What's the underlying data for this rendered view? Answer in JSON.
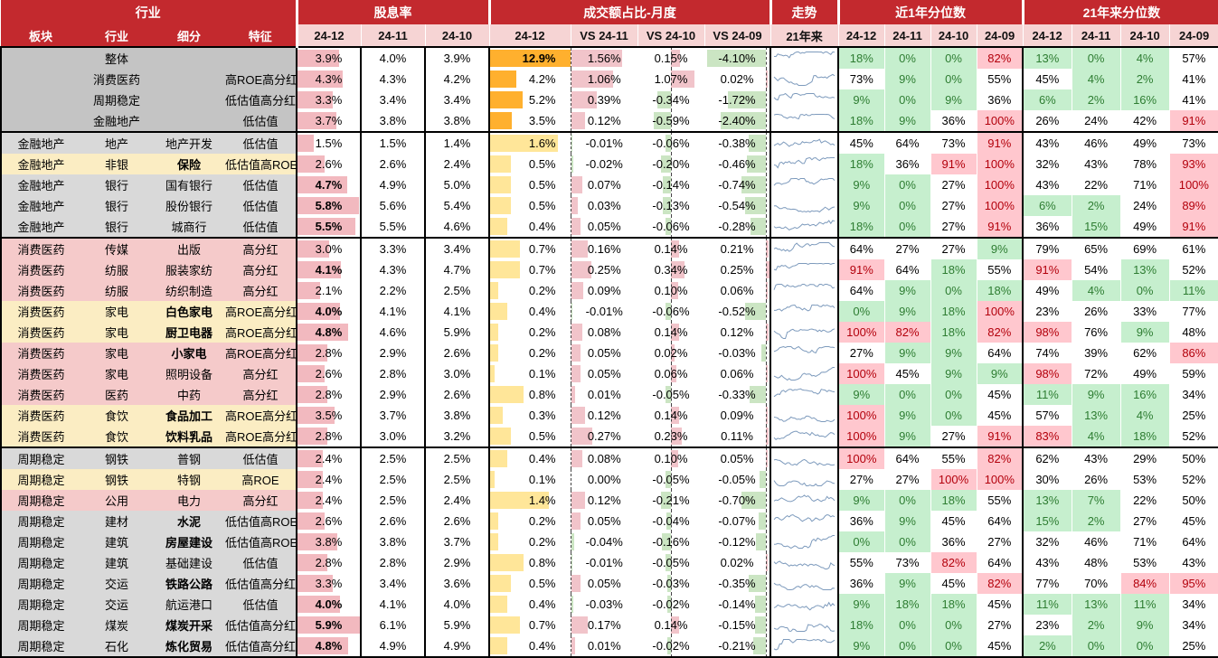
{
  "header": {
    "groups": [
      {
        "label": "行业",
        "cols": 4
      },
      {
        "label": "股息率",
        "cols": 3
      },
      {
        "label": "成交额占比-月度",
        "cols": 4
      },
      {
        "label": "走势",
        "cols": 1
      },
      {
        "label": "近1年分位数",
        "cols": 4
      },
      {
        "label": "21年来分位数",
        "cols": 4
      }
    ],
    "sub": [
      "板块",
      "行业",
      "细分",
      "特征",
      "24-12",
      "24-11",
      "24-10",
      "24-12",
      "VS 24-11",
      "VS 24-10",
      "VS 24-09",
      "21年来",
      "24-12",
      "24-11",
      "24-10",
      "24-09",
      "24-12",
      "24-11",
      "24-10",
      "24-09"
    ]
  },
  "colors": {
    "header_red": "#C3292E",
    "subheader_pink": "#F6D4D4",
    "row_gray_dark": "#C4C4C4",
    "row_gray": "#D9D9D9",
    "row_yellow": "#FBEDC3",
    "row_pink": "#F5CACA",
    "dividend_bar_pink": "#F2B9BF",
    "turnover_bar_orange": "#FFB02E",
    "turnover_bar_yellow": "#FFE699",
    "vs_bar_pink": "#F1C4CA",
    "vs_bar_green": "#CBE5C3",
    "pct_green_bg": "#C6EFCE",
    "pct_green_text": "#2E7D32",
    "pct_red_bg": "#FFC7CE",
    "pct_red_text": "#B3000C",
    "sparkline": "#7E9BBD"
  },
  "rows": [
    {
      "sector": "",
      "industry": "整体",
      "seg": "",
      "feature": "",
      "bg": "dark",
      "sb": false,
      "div": [
        "3.9%",
        "4.0%",
        "3.9%"
      ],
      "vol": "12.9%",
      "vs": [
        "1.56%",
        "0.15%",
        "-4.10%"
      ],
      "p1": [
        "18%",
        "0%",
        "0%",
        "82%"
      ],
      "p21": [
        "13%",
        "0%",
        "4%",
        "57%"
      ]
    },
    {
      "sector": "",
      "industry": "消费医药",
      "seg": "",
      "feature": "高ROE高分红",
      "bg": "dark",
      "sb": false,
      "div": [
        "4.3%",
        "4.3%",
        "4.2%"
      ],
      "vol": "4.2%",
      "vs": [
        "1.06%",
        "1.07%",
        "0.02%"
      ],
      "p1": [
        "73%",
        "9%",
        "0%",
        "55%"
      ],
      "p21": [
        "45%",
        "4%",
        "2%",
        "41%"
      ]
    },
    {
      "sector": "",
      "industry": "周期稳定",
      "seg": "",
      "feature": "低估值高分红",
      "bg": "dark",
      "sb": false,
      "div": [
        "3.3%",
        "3.4%",
        "3.4%"
      ],
      "vol": "5.2%",
      "vs": [
        "0.39%",
        "-0.34%",
        "-1.72%"
      ],
      "p1": [
        "9%",
        "0%",
        "9%",
        "36%"
      ],
      "p21": [
        "6%",
        "2%",
        "16%",
        "41%"
      ]
    },
    {
      "sector": "",
      "industry": "金融地产",
      "seg": "",
      "feature": "低估值",
      "bg": "dark",
      "sb": false,
      "div": [
        "3.7%",
        "3.8%",
        "3.8%"
      ],
      "vol": "3.5%",
      "vs": [
        "0.12%",
        "-0.59%",
        "-2.40%"
      ],
      "p1": [
        "18%",
        "9%",
        "36%",
        "100%"
      ],
      "p21": [
        "26%",
        "24%",
        "42%",
        "91%"
      ]
    },
    {
      "sector": "金融地产",
      "industry": "地产",
      "seg": "地产开发",
      "feature": "低估值",
      "bg": "gray",
      "sb": false,
      "div": [
        "1.5%",
        "1.5%",
        "1.4%"
      ],
      "vol": "1.6%",
      "vs": [
        "-0.01%",
        "-0.06%",
        "-0.38%"
      ],
      "p1": [
        "45%",
        "64%",
        "73%",
        "91%"
      ],
      "p21": [
        "43%",
        "46%",
        "49%",
        "73%"
      ]
    },
    {
      "sector": "金融地产",
      "industry": "非银",
      "seg": "保险",
      "feature": "低估值高ROE",
      "bg": "yellow",
      "sb": true,
      "div": [
        "2.6%",
        "2.6%",
        "2.4%"
      ],
      "vol": "0.5%",
      "vs": [
        "-0.02%",
        "-0.20%",
        "-0.46%"
      ],
      "p1": [
        "18%",
        "36%",
        "91%",
        "100%"
      ],
      "p21": [
        "32%",
        "43%",
        "78%",
        "93%"
      ]
    },
    {
      "sector": "金融地产",
      "industry": "银行",
      "seg": "国有银行",
      "feature": "低估值",
      "bg": "gray",
      "sb": false,
      "div": [
        "4.7%",
        "4.9%",
        "5.0%"
      ],
      "vol": "0.5%",
      "vs": [
        "0.07%",
        "-0.14%",
        "-0.74%"
      ],
      "p1": [
        "9%",
        "0%",
        "27%",
        "100%"
      ],
      "p21": [
        "43%",
        "22%",
        "71%",
        "100%"
      ]
    },
    {
      "sector": "金融地产",
      "industry": "银行",
      "seg": "股份银行",
      "feature": "低估值",
      "bg": "gray",
      "sb": false,
      "div": [
        "5.8%",
        "5.6%",
        "5.4%"
      ],
      "vol": "0.5%",
      "vs": [
        "0.03%",
        "-0.13%",
        "-0.54%"
      ],
      "p1": [
        "9%",
        "0%",
        "27%",
        "100%"
      ],
      "p21": [
        "6%",
        "2%",
        "24%",
        "89%"
      ]
    },
    {
      "sector": "金融地产",
      "industry": "银行",
      "seg": "城商行",
      "feature": "低估值",
      "bg": "gray",
      "sb": false,
      "div": [
        "5.5%",
        "5.5%",
        "4.6%"
      ],
      "vol": "0.4%",
      "vs": [
        "0.05%",
        "-0.06%",
        "-0.28%"
      ],
      "p1": [
        "18%",
        "0%",
        "27%",
        "91%"
      ],
      "p21": [
        "36%",
        "15%",
        "49%",
        "91%"
      ]
    },
    {
      "sector": "消费医药",
      "industry": "传媒",
      "seg": "出版",
      "feature": "高分红",
      "bg": "pink",
      "sb": false,
      "div": [
        "3.0%",
        "3.3%",
        "3.4%"
      ],
      "vol": "0.7%",
      "vs": [
        "0.16%",
        "0.14%",
        "0.21%"
      ],
      "p1": [
        "64%",
        "27%",
        "27%",
        "9%"
      ],
      "p21": [
        "79%",
        "65%",
        "69%",
        "61%"
      ]
    },
    {
      "sector": "消费医药",
      "industry": "纺服",
      "seg": "服装家纺",
      "feature": "高分红",
      "bg": "pink",
      "sb": false,
      "div": [
        "4.1%",
        "4.3%",
        "4.7%"
      ],
      "vol": "0.7%",
      "vs": [
        "0.25%",
        "0.34%",
        "0.25%"
      ],
      "p1": [
        "91%",
        "64%",
        "18%",
        "55%"
      ],
      "p21": [
        "91%",
        "54%",
        "13%",
        "52%"
      ]
    },
    {
      "sector": "消费医药",
      "industry": "纺服",
      "seg": "纺织制造",
      "feature": "高分红",
      "bg": "pink",
      "sb": false,
      "div": [
        "2.1%",
        "2.2%",
        "2.5%"
      ],
      "vol": "0.2%",
      "vs": [
        "0.09%",
        "0.10%",
        "0.06%"
      ],
      "p1": [
        "64%",
        "9%",
        "0%",
        "18%"
      ],
      "p21": [
        "49%",
        "4%",
        "0%",
        "11%"
      ]
    },
    {
      "sector": "消费医药",
      "industry": "家电",
      "seg": "白色家电",
      "feature": "高ROE高分红",
      "bg": "yellow",
      "sb": true,
      "div": [
        "4.0%",
        "4.1%",
        "4.1%"
      ],
      "vol": "0.4%",
      "vs": [
        "-0.01%",
        "-0.06%",
        "-0.52%"
      ],
      "p1": [
        "0%",
        "9%",
        "18%",
        "100%"
      ],
      "p21": [
        "23%",
        "26%",
        "33%",
        "77%"
      ]
    },
    {
      "sector": "消费医药",
      "industry": "家电",
      "seg": "厨卫电器",
      "feature": "高ROE高分红",
      "bg": "yellow",
      "sb": true,
      "div": [
        "4.8%",
        "4.6%",
        "5.9%"
      ],
      "vol": "0.2%",
      "vs": [
        "0.08%",
        "0.14%",
        "0.12%"
      ],
      "p1": [
        "100%",
        "82%",
        "18%",
        "82%"
      ],
      "p21": [
        "98%",
        "76%",
        "9%",
        "48%"
      ]
    },
    {
      "sector": "消费医药",
      "industry": "家电",
      "seg": "小家电",
      "feature": "高ROE高分红",
      "bg": "pink",
      "sb": true,
      "div": [
        "2.8%",
        "2.9%",
        "2.6%"
      ],
      "vol": "0.2%",
      "vs": [
        "0.05%",
        "0.02%",
        "-0.03%"
      ],
      "p1": [
        "27%",
        "9%",
        "9%",
        "64%"
      ],
      "p21": [
        "74%",
        "39%",
        "62%",
        "86%"
      ]
    },
    {
      "sector": "消费医药",
      "industry": "家电",
      "seg": "照明设备",
      "feature": "高分红",
      "bg": "pink",
      "sb": false,
      "div": [
        "2.6%",
        "2.8%",
        "3.0%"
      ],
      "vol": "0.1%",
      "vs": [
        "0.05%",
        "0.06%",
        "0.06%"
      ],
      "p1": [
        "100%",
        "45%",
        "9%",
        "9%"
      ],
      "p21": [
        "98%",
        "72%",
        "49%",
        "59%"
      ]
    },
    {
      "sector": "消费医药",
      "industry": "医药",
      "seg": "中药",
      "feature": "高分红",
      "bg": "pink",
      "sb": false,
      "div": [
        "2.8%",
        "2.9%",
        "2.6%"
      ],
      "vol": "0.8%",
      "vs": [
        "0.01%",
        "-0.05%",
        "-0.33%"
      ],
      "p1": [
        "9%",
        "0%",
        "0%",
        "45%"
      ],
      "p21": [
        "11%",
        "9%",
        "16%",
        "34%"
      ]
    },
    {
      "sector": "消费医药",
      "industry": "食饮",
      "seg": "食品加工",
      "feature": "高ROE高分红",
      "bg": "yellow",
      "sb": true,
      "div": [
        "3.5%",
        "3.7%",
        "3.8%"
      ],
      "vol": "0.3%",
      "vs": [
        "0.12%",
        "0.14%",
        "0.09%"
      ],
      "p1": [
        "100%",
        "9%",
        "0%",
        "45%"
      ],
      "p21": [
        "57%",
        "13%",
        "4%",
        "25%"
      ]
    },
    {
      "sector": "消费医药",
      "industry": "食饮",
      "seg": "饮料乳品",
      "feature": "高ROE高分红",
      "bg": "yellow",
      "sb": true,
      "div": [
        "2.8%",
        "3.0%",
        "3.2%"
      ],
      "vol": "0.5%",
      "vs": [
        "0.27%",
        "0.23%",
        "0.11%"
      ],
      "p1": [
        "100%",
        "9%",
        "27%",
        "91%"
      ],
      "p21": [
        "83%",
        "4%",
        "18%",
        "52%"
      ]
    },
    {
      "sector": "周期稳定",
      "industry": "钢铁",
      "seg": "普钢",
      "feature": "低估值",
      "bg": "gray",
      "sb": false,
      "div": [
        "2.4%",
        "2.5%",
        "2.5%"
      ],
      "vol": "0.4%",
      "vs": [
        "0.08%",
        "0.10%",
        "0.05%"
      ],
      "p1": [
        "100%",
        "64%",
        "55%",
        "82%"
      ],
      "p21": [
        "62%",
        "43%",
        "29%",
        "50%"
      ]
    },
    {
      "sector": "周期稳定",
      "industry": "钢铁",
      "seg": "特钢",
      "feature": "高ROE",
      "bg": "yellow",
      "sb": false,
      "div": [
        "2.4%",
        "2.5%",
        "2.5%"
      ],
      "vol": "0.1%",
      "vs": [
        "0.00%",
        "-0.05%",
        "-0.05%"
      ],
      "p1": [
        "27%",
        "27%",
        "100%",
        "100%"
      ],
      "p21": [
        "30%",
        "26%",
        "53%",
        "52%"
      ]
    },
    {
      "sector": "周期稳定",
      "industry": "公用",
      "seg": "电力",
      "feature": "高分红",
      "bg": "pink",
      "sb": false,
      "div": [
        "2.4%",
        "2.5%",
        "2.4%"
      ],
      "vol": "1.4%",
      "vs": [
        "0.12%",
        "-0.21%",
        "-0.70%"
      ],
      "p1": [
        "9%",
        "0%",
        "18%",
        "55%"
      ],
      "p21": [
        "13%",
        "7%",
        "22%",
        "50%"
      ]
    },
    {
      "sector": "周期稳定",
      "industry": "建材",
      "seg": "水泥",
      "feature": "低估值高ROE",
      "bg": "gray",
      "sb": true,
      "div": [
        "2.6%",
        "2.6%",
        "2.6%"
      ],
      "vol": "0.2%",
      "vs": [
        "0.05%",
        "-0.04%",
        "-0.07%"
      ],
      "p1": [
        "36%",
        "9%",
        "45%",
        "64%"
      ],
      "p21": [
        "15%",
        "2%",
        "27%",
        "45%"
      ]
    },
    {
      "sector": "周期稳定",
      "industry": "建筑",
      "seg": "房屋建设",
      "feature": "低估值高ROE",
      "bg": "gray",
      "sb": true,
      "div": [
        "3.8%",
        "3.8%",
        "3.7%"
      ],
      "vol": "0.2%",
      "vs": [
        "-0.04%",
        "-0.16%",
        "-0.12%"
      ],
      "p1": [
        "0%",
        "0%",
        "36%",
        "27%"
      ],
      "p21": [
        "32%",
        "46%",
        "71%",
        "64%"
      ]
    },
    {
      "sector": "周期稳定",
      "industry": "建筑",
      "seg": "基础建设",
      "feature": "低估值",
      "bg": "gray",
      "sb": false,
      "div": [
        "2.8%",
        "2.8%",
        "2.9%"
      ],
      "vol": "0.8%",
      "vs": [
        "-0.01%",
        "-0.05%",
        "0.02%"
      ],
      "p1": [
        "55%",
        "73%",
        "82%",
        "64%"
      ],
      "p21": [
        "43%",
        "48%",
        "53%",
        "43%"
      ]
    },
    {
      "sector": "周期稳定",
      "industry": "交运",
      "seg": "铁路公路",
      "feature": "低估值高分红",
      "bg": "gray",
      "sb": true,
      "div": [
        "3.3%",
        "3.4%",
        "3.6%"
      ],
      "vol": "0.5%",
      "vs": [
        "0.05%",
        "-0.03%",
        "-0.35%"
      ],
      "p1": [
        "36%",
        "9%",
        "45%",
        "82%"
      ],
      "p21": [
        "77%",
        "70%",
        "84%",
        "95%"
      ]
    },
    {
      "sector": "周期稳定",
      "industry": "交运",
      "seg": "航运港口",
      "feature": "低估值",
      "bg": "gray",
      "sb": false,
      "div": [
        "4.0%",
        "4.1%",
        "4.0%"
      ],
      "vol": "0.4%",
      "vs": [
        "-0.03%",
        "-0.02%",
        "-0.14%"
      ],
      "p1": [
        "9%",
        "18%",
        "18%",
        "45%"
      ],
      "p21": [
        "11%",
        "13%",
        "11%",
        "34%"
      ]
    },
    {
      "sector": "周期稳定",
      "industry": "煤炭",
      "seg": "煤炭开采",
      "feature": "低估值高分红",
      "bg": "gray",
      "sb": true,
      "div": [
        "5.9%",
        "6.1%",
        "5.9%"
      ],
      "vol": "0.7%",
      "vs": [
        "0.17%",
        "0.14%",
        "-0.15%"
      ],
      "p1": [
        "18%",
        "0%",
        "0%",
        "27%"
      ],
      "p21": [
        "23%",
        "2%",
        "9%",
        "34%"
      ]
    },
    {
      "sector": "周期稳定",
      "industry": "石化",
      "seg": "炼化贸易",
      "feature": "低估值高分红",
      "bg": "gray",
      "sb": true,
      "div": [
        "4.8%",
        "4.9%",
        "4.9%"
      ],
      "vol": "0.4%",
      "vs": [
        "0.01%",
        "-0.02%",
        "-0.21%"
      ],
      "p1": [
        "9%",
        "0%",
        "0%",
        "45%"
      ],
      "p21": [
        "2%",
        "0%",
        "0%",
        "25%"
      ]
    }
  ]
}
